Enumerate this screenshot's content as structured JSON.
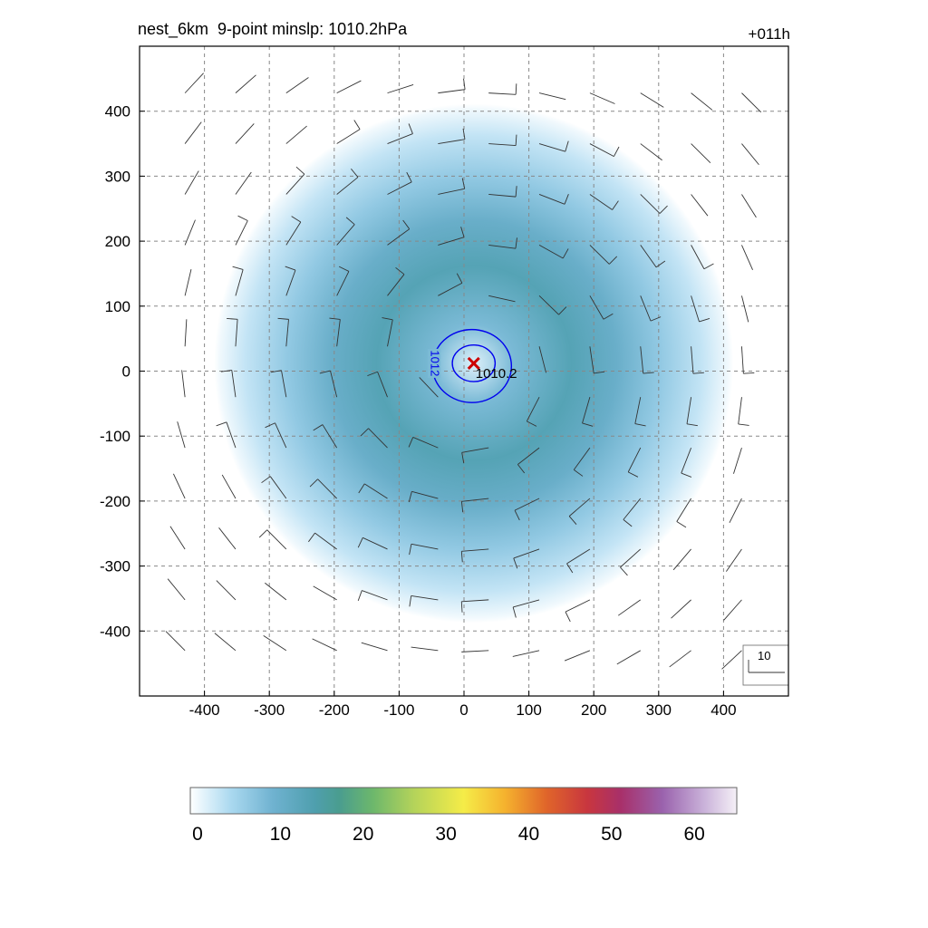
{
  "title": "nest_6km  9-point minslp: 1010.2hPa",
  "forecast_hour": "+011h",
  "chart_data": {
    "type": "heatmap",
    "title": "nest_6km  9-point minslp: 1010.2hPa",
    "xlabel": "",
    "ylabel": "",
    "xlim": [
      -500,
      500
    ],
    "ylim": [
      -500,
      500
    ],
    "xticks": [
      -400,
      -300,
      -200,
      -100,
      0,
      100,
      200,
      300,
      400
    ],
    "yticks": [
      400,
      300,
      200,
      100,
      0,
      -100,
      -200,
      -300,
      -400
    ],
    "grid": true,
    "center": {
      "x": 15,
      "y": 12,
      "marker": "x",
      "color": "#cc0000",
      "label": "1010.2"
    },
    "contours": [
      {
        "level": 1012,
        "label": "1012",
        "color": "#0000ee",
        "radius": 58
      },
      {
        "level": 1011,
        "label": "",
        "color": "#0000ee",
        "radius": 30
      }
    ],
    "shading": {
      "max_value": 14,
      "core_radius": 60,
      "peak_radius": 150,
      "outer_radius": 400
    },
    "wind_barbs": {
      "grid_spacing": 78,
      "reference_label": "10"
    },
    "colorbar": {
      "min": 0,
      "max": 66,
      "ticks": [
        0,
        10,
        20,
        30,
        40,
        50,
        60
      ],
      "stops": [
        {
          "v": 0,
          "c": "#ffffff"
        },
        {
          "v": 2,
          "c": "#dcf0fa"
        },
        {
          "v": 5,
          "c": "#a9d8ef"
        },
        {
          "v": 10,
          "c": "#6fb2d0"
        },
        {
          "v": 15,
          "c": "#4f9fae"
        },
        {
          "v": 18,
          "c": "#4a9d8f"
        },
        {
          "v": 22,
          "c": "#6cb76c"
        },
        {
          "v": 27,
          "c": "#b4d35a"
        },
        {
          "v": 33,
          "c": "#f5ec48"
        },
        {
          "v": 38,
          "c": "#f5b22e"
        },
        {
          "v": 43,
          "c": "#e0652a"
        },
        {
          "v": 48,
          "c": "#c8363f"
        },
        {
          "v": 52,
          "c": "#a8306a"
        },
        {
          "v": 57,
          "c": "#9a62ad"
        },
        {
          "v": 62,
          "c": "#c9b1d9"
        },
        {
          "v": 66,
          "c": "#f5f0f7"
        }
      ]
    }
  }
}
